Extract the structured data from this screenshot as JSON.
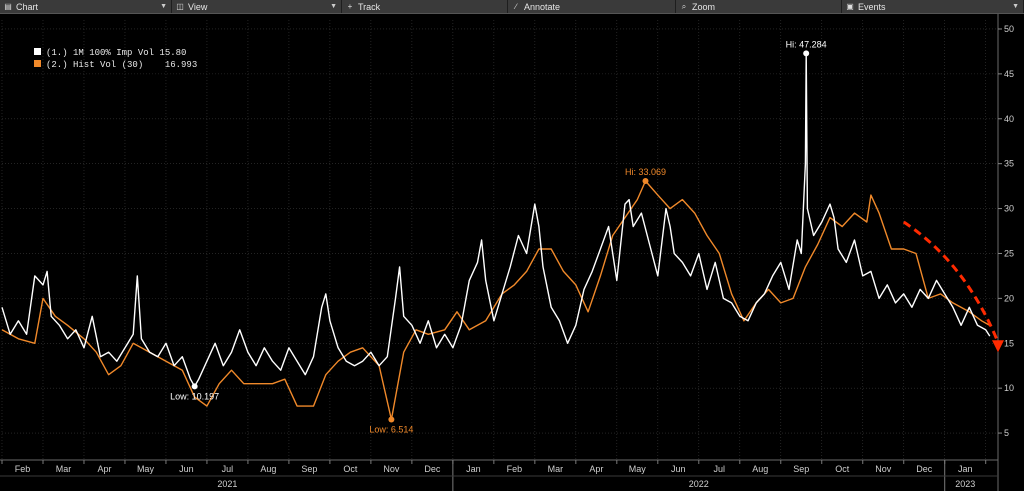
{
  "toolbar": {
    "items": [
      {
        "label": "Chart",
        "icon": "chart-icon"
      },
      {
        "label": "View",
        "icon": "view-icon"
      },
      {
        "label": "Track",
        "icon": "crosshair-icon"
      },
      {
        "label": "Annotate",
        "icon": "annotate-icon"
      },
      {
        "label": "Zoom",
        "icon": "zoom-icon"
      },
      {
        "label": "Events",
        "icon": "events-icon"
      }
    ]
  },
  "legend": [
    {
      "label": "(1.) 1M 100% Imp Vol 15.80",
      "color": "#ffffff"
    },
    {
      "label": "(2.) Hist Vol (30)    16.993",
      "color": "#f0892a"
    }
  ],
  "colors": {
    "background": "#000000",
    "implied": "#ffffff",
    "historical": "#f0892a",
    "grid": "#3a3a3a",
    "arrow": "#ff2a00"
  },
  "chart_data": {
    "type": "line",
    "ylim": [
      2,
      51
    ],
    "yticks": [
      5,
      10,
      15,
      20,
      25,
      30,
      35,
      40,
      45,
      50
    ],
    "y_axis_side": "right",
    "grid": true,
    "legend_position": "top-left",
    "x_months": [
      {
        "label": "Feb",
        "t": 0.5
      },
      {
        "label": "Mar",
        "t": 1.5
      },
      {
        "label": "Apr",
        "t": 2.5
      },
      {
        "label": "May",
        "t": 3.5
      },
      {
        "label": "Jun",
        "t": 4.5
      },
      {
        "label": "Jul",
        "t": 5.5
      },
      {
        "label": "Aug",
        "t": 6.5
      },
      {
        "label": "Sep",
        "t": 7.5
      },
      {
        "label": "Oct",
        "t": 8.5
      },
      {
        "label": "Nov",
        "t": 9.5
      },
      {
        "label": "Dec",
        "t": 10.5
      },
      {
        "label": "Jan",
        "t": 11.5
      },
      {
        "label": "Feb",
        "t": 12.5
      },
      {
        "label": "Mar",
        "t": 13.5
      },
      {
        "label": "Apr",
        "t": 14.5
      },
      {
        "label": "May",
        "t": 15.5
      },
      {
        "label": "Jun",
        "t": 16.5
      },
      {
        "label": "Jul",
        "t": 17.5
      },
      {
        "label": "Aug",
        "t": 18.5
      },
      {
        "label": "Sep",
        "t": 19.5
      },
      {
        "label": "Oct",
        "t": 20.5
      },
      {
        "label": "Nov",
        "t": 21.5
      },
      {
        "label": "Dec",
        "t": 22.5
      },
      {
        "label": "Jan",
        "t": 23.5
      }
    ],
    "years": [
      {
        "label": "2021",
        "t": 5.5
      },
      {
        "label": "2022",
        "t": 17.0
      },
      {
        "label": "2023",
        "t": 23.5
      }
    ],
    "year_separators": [
      11.0,
      23.0
    ],
    "x_range": [
      0,
      24.3
    ],
    "series": [
      {
        "name": "(1.) 1M 100% Imp Vol",
        "color": "#ffffff",
        "points": [
          [
            0.0,
            19.0
          ],
          [
            0.2,
            16.0
          ],
          [
            0.4,
            17.5
          ],
          [
            0.6,
            16.0
          ],
          [
            0.8,
            22.5
          ],
          [
            1.0,
            21.5
          ],
          [
            1.1,
            23.0
          ],
          [
            1.2,
            18.0
          ],
          [
            1.4,
            17.0
          ],
          [
            1.6,
            15.5
          ],
          [
            1.8,
            16.5
          ],
          [
            2.0,
            14.5
          ],
          [
            2.2,
            18.0
          ],
          [
            2.4,
            13.5
          ],
          [
            2.6,
            14.0
          ],
          [
            2.8,
            13.0
          ],
          [
            3.0,
            14.5
          ],
          [
            3.2,
            16.0
          ],
          [
            3.3,
            22.5
          ],
          [
            3.4,
            15.5
          ],
          [
            3.6,
            14.0
          ],
          [
            3.8,
            13.5
          ],
          [
            4.0,
            15.0
          ],
          [
            4.2,
            12.5
          ],
          [
            4.4,
            13.5
          ],
          [
            4.6,
            11.0
          ],
          [
            4.7,
            10.197
          ],
          [
            4.8,
            11.0
          ],
          [
            5.0,
            13.0
          ],
          [
            5.2,
            15.0
          ],
          [
            5.4,
            12.5
          ],
          [
            5.6,
            14.0
          ],
          [
            5.8,
            16.5
          ],
          [
            6.0,
            14.0
          ],
          [
            6.2,
            12.5
          ],
          [
            6.4,
            14.5
          ],
          [
            6.6,
            13.0
          ],
          [
            6.8,
            12.0
          ],
          [
            7.0,
            14.5
          ],
          [
            7.2,
            13.0
          ],
          [
            7.4,
            11.5
          ],
          [
            7.6,
            13.5
          ],
          [
            7.8,
            19.0
          ],
          [
            7.9,
            20.5
          ],
          [
            8.0,
            17.5
          ],
          [
            8.2,
            14.5
          ],
          [
            8.4,
            13.0
          ],
          [
            8.6,
            12.5
          ],
          [
            8.8,
            13.0
          ],
          [
            9.0,
            14.0
          ],
          [
            9.2,
            12.5
          ],
          [
            9.4,
            13.5
          ],
          [
            9.6,
            20.0
          ],
          [
            9.7,
            23.5
          ],
          [
            9.8,
            18.0
          ],
          [
            10.0,
            17.0
          ],
          [
            10.2,
            15.0
          ],
          [
            10.4,
            17.5
          ],
          [
            10.6,
            14.5
          ],
          [
            10.8,
            16.0
          ],
          [
            11.0,
            14.5
          ],
          [
            11.2,
            17.0
          ],
          [
            11.4,
            22.0
          ],
          [
            11.6,
            24.0
          ],
          [
            11.7,
            26.5
          ],
          [
            11.8,
            22.0
          ],
          [
            12.0,
            17.5
          ],
          [
            12.2,
            20.5
          ],
          [
            12.4,
            23.5
          ],
          [
            12.6,
            27.0
          ],
          [
            12.8,
            25.0
          ],
          [
            13.0,
            30.5
          ],
          [
            13.1,
            28.0
          ],
          [
            13.2,
            23.5
          ],
          [
            13.4,
            19.0
          ],
          [
            13.6,
            17.5
          ],
          [
            13.8,
            15.0
          ],
          [
            14.0,
            17.0
          ],
          [
            14.2,
            21.0
          ],
          [
            14.4,
            23.0
          ],
          [
            14.6,
            25.5
          ],
          [
            14.8,
            28.0
          ],
          [
            15.0,
            22.0
          ],
          [
            15.2,
            30.5
          ],
          [
            15.3,
            31.0
          ],
          [
            15.4,
            28.0
          ],
          [
            15.6,
            29.5
          ],
          [
            15.8,
            26.0
          ],
          [
            16.0,
            22.5
          ],
          [
            16.2,
            30.0
          ],
          [
            16.3,
            28.0
          ],
          [
            16.4,
            25.0
          ],
          [
            16.6,
            24.0
          ],
          [
            16.8,
            22.5
          ],
          [
            17.0,
            25.0
          ],
          [
            17.2,
            21.0
          ],
          [
            17.4,
            24.0
          ],
          [
            17.6,
            20.0
          ],
          [
            17.8,
            19.5
          ],
          [
            18.0,
            18.0
          ],
          [
            18.2,
            17.5
          ],
          [
            18.4,
            19.5
          ],
          [
            18.6,
            20.5
          ],
          [
            18.8,
            22.5
          ],
          [
            19.0,
            24.0
          ],
          [
            19.2,
            21.0
          ],
          [
            19.4,
            26.5
          ],
          [
            19.5,
            25.0
          ],
          [
            19.6,
            35.0
          ],
          [
            19.62,
            47.284
          ],
          [
            19.65,
            30.0
          ],
          [
            19.8,
            27.0
          ],
          [
            20.0,
            28.5
          ],
          [
            20.2,
            30.5
          ],
          [
            20.3,
            29.0
          ],
          [
            20.4,
            25.5
          ],
          [
            20.6,
            24.0
          ],
          [
            20.8,
            26.5
          ],
          [
            21.0,
            22.5
          ],
          [
            21.2,
            23.0
          ],
          [
            21.4,
            20.0
          ],
          [
            21.6,
            21.5
          ],
          [
            21.8,
            19.5
          ],
          [
            22.0,
            20.5
          ],
          [
            22.2,
            19.0
          ],
          [
            22.4,
            21.0
          ],
          [
            22.6,
            20.0
          ],
          [
            22.8,
            22.0
          ],
          [
            23.0,
            20.5
          ],
          [
            23.2,
            19.0
          ],
          [
            23.4,
            17.0
          ],
          [
            23.6,
            19.0
          ],
          [
            23.8,
            17.0
          ],
          [
            24.0,
            16.5
          ],
          [
            24.1,
            15.8
          ]
        ]
      },
      {
        "name": "Hist Vol (30)",
        "color": "#f0892a",
        "points": [
          [
            0.0,
            16.5
          ],
          [
            0.4,
            15.5
          ],
          [
            0.8,
            15.0
          ],
          [
            1.0,
            20.0
          ],
          [
            1.3,
            18.0
          ],
          [
            1.6,
            17.0
          ],
          [
            2.0,
            15.5
          ],
          [
            2.3,
            14.0
          ],
          [
            2.6,
            11.5
          ],
          [
            2.9,
            12.5
          ],
          [
            3.2,
            15.0
          ],
          [
            3.6,
            14.0
          ],
          [
            4.0,
            13.0
          ],
          [
            4.4,
            12.0
          ],
          [
            4.7,
            9.0
          ],
          [
            5.0,
            8.0
          ],
          [
            5.3,
            10.5
          ],
          [
            5.6,
            12.0
          ],
          [
            5.9,
            10.5
          ],
          [
            6.2,
            10.5
          ],
          [
            6.6,
            10.5
          ],
          [
            6.9,
            11.0
          ],
          [
            7.2,
            8.0
          ],
          [
            7.6,
            8.0
          ],
          [
            7.9,
            11.5
          ],
          [
            8.2,
            13.0
          ],
          [
            8.5,
            14.0
          ],
          [
            8.8,
            14.5
          ],
          [
            9.2,
            12.5
          ],
          [
            9.5,
            6.514
          ],
          [
            9.8,
            14.0
          ],
          [
            10.1,
            16.5
          ],
          [
            10.4,
            16.0
          ],
          [
            10.8,
            16.5
          ],
          [
            11.1,
            18.5
          ],
          [
            11.4,
            16.5
          ],
          [
            11.8,
            17.5
          ],
          [
            12.2,
            20.5
          ],
          [
            12.5,
            21.5
          ],
          [
            12.8,
            23.0
          ],
          [
            13.1,
            25.5
          ],
          [
            13.4,
            25.5
          ],
          [
            13.7,
            23.0
          ],
          [
            14.0,
            21.5
          ],
          [
            14.3,
            18.5
          ],
          [
            14.6,
            22.5
          ],
          [
            14.9,
            27.0
          ],
          [
            15.2,
            29.0
          ],
          [
            15.5,
            31.0
          ],
          [
            15.7,
            33.069
          ],
          [
            16.0,
            31.5
          ],
          [
            16.3,
            30.0
          ],
          [
            16.6,
            31.0
          ],
          [
            16.9,
            29.5
          ],
          [
            17.2,
            27.0
          ],
          [
            17.5,
            25.0
          ],
          [
            17.8,
            20.5
          ],
          [
            18.1,
            17.5
          ],
          [
            18.4,
            19.5
          ],
          [
            18.7,
            21.0
          ],
          [
            19.0,
            19.5
          ],
          [
            19.3,
            20.0
          ],
          [
            19.6,
            23.5
          ],
          [
            19.9,
            26.0
          ],
          [
            20.2,
            29.0
          ],
          [
            20.5,
            28.0
          ],
          [
            20.8,
            29.5
          ],
          [
            21.1,
            28.5
          ],
          [
            21.2,
            31.5
          ],
          [
            21.4,
            29.5
          ],
          [
            21.7,
            25.5
          ],
          [
            22.0,
            25.5
          ],
          [
            22.3,
            25.0
          ],
          [
            22.6,
            20.0
          ],
          [
            22.9,
            20.5
          ],
          [
            23.2,
            19.5
          ],
          [
            23.6,
            18.5
          ],
          [
            23.9,
            17.5
          ],
          [
            24.1,
            16.993
          ]
        ]
      }
    ],
    "annotations": [
      {
        "text": "Hi: 47.284",
        "series": 0,
        "x": 19.62,
        "y": 47.284,
        "color": "#ffffff",
        "anchor": "above"
      },
      {
        "text": "Low: 10.197",
        "series": 0,
        "x": 4.7,
        "y": 10.197,
        "color": "#ffffff",
        "anchor": "below"
      },
      {
        "text": "Hi: 33.069",
        "series": 1,
        "x": 15.7,
        "y": 33.069,
        "color": "#f0892a",
        "anchor": "above"
      },
      {
        "text": "Low: 6.514",
        "series": 1,
        "x": 9.5,
        "y": 6.514,
        "color": "#f0892a",
        "anchor": "below"
      }
    ],
    "trend_arrow": {
      "from": [
        22.0,
        28.5
      ],
      "via": [
        23.5,
        24.0
      ],
      "to": [
        24.3,
        14.0
      ],
      "color": "#ff2a00",
      "style": "dashed"
    }
  }
}
